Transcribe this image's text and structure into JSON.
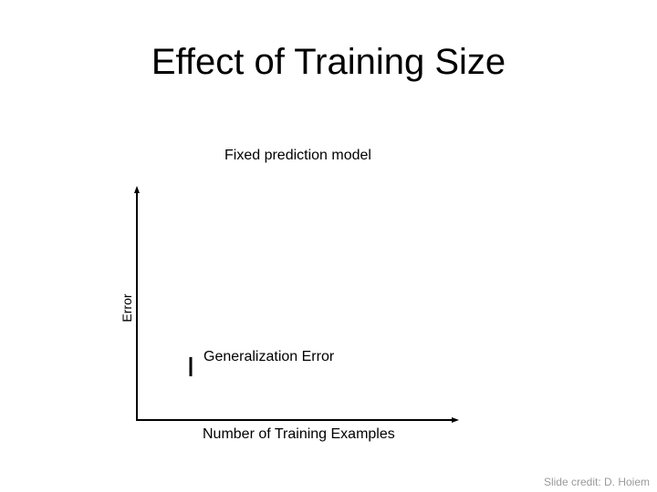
{
  "slide": {
    "title": "Effect of Training Size",
    "subtitle": "Fixed prediction model",
    "credit": "Slide credit: D. Hoiem"
  },
  "diagram": {
    "y_axis_label": "Error",
    "x_axis_label": "Number of Training Examples",
    "partial_label": "Generalization Error"
  },
  "colors": {
    "axis": "#000000",
    "text": "#000000",
    "credit": "#9a9a9a"
  }
}
